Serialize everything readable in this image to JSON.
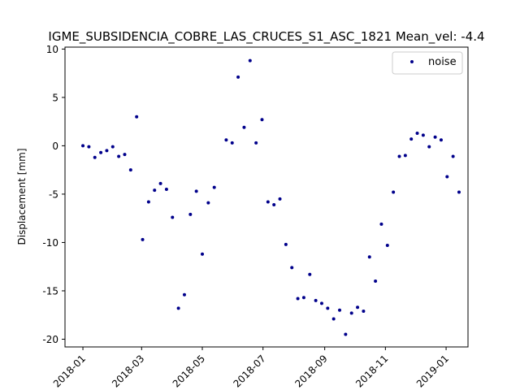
{
  "chart_data": {
    "type": "scatter",
    "title": "IGME_SUBSIDENCIA_COBRE_LAS_CRUCES_S1_ASC_1821     Mean_vel: -4.4",
    "xlabel": "",
    "ylabel": "Displacement [mm]",
    "xlim": [
      "2017-12-14",
      "2019-01-23"
    ],
    "ylim": [
      -20.8,
      10.2
    ],
    "x_ticks": [
      "2018-01",
      "2018-03",
      "2018-05",
      "2018-07",
      "2018-09",
      "2018-11",
      "2019-01"
    ],
    "y_ticks": [
      10,
      5,
      0,
      -5,
      -10,
      -15,
      -20
    ],
    "grid": false,
    "legend_position": "top-right",
    "series": [
      {
        "name": "noise",
        "color": "#00008b",
        "points": [
          {
            "x": "2018-01-01",
            "y": 0.0
          },
          {
            "x": "2018-01-07",
            "y": -0.1
          },
          {
            "x": "2018-01-13",
            "y": -1.2
          },
          {
            "x": "2018-01-19",
            "y": -0.7
          },
          {
            "x": "2018-01-25",
            "y": -0.5
          },
          {
            "x": "2018-01-31",
            "y": -0.1
          },
          {
            "x": "2018-02-06",
            "y": -1.1
          },
          {
            "x": "2018-02-12",
            "y": -0.9
          },
          {
            "x": "2018-02-18",
            "y": -2.5
          },
          {
            "x": "2018-02-24",
            "y": 3.0
          },
          {
            "x": "2018-03-02",
            "y": -9.7
          },
          {
            "x": "2018-03-08",
            "y": -5.8
          },
          {
            "x": "2018-03-14",
            "y": -4.6
          },
          {
            "x": "2018-03-20",
            "y": -3.9
          },
          {
            "x": "2018-03-26",
            "y": -4.5
          },
          {
            "x": "2018-04-01",
            "y": -7.4
          },
          {
            "x": "2018-04-07",
            "y": -16.8
          },
          {
            "x": "2018-04-13",
            "y": -15.4
          },
          {
            "x": "2018-04-19",
            "y": -7.1
          },
          {
            "x": "2018-04-25",
            "y": -4.7
          },
          {
            "x": "2018-05-01",
            "y": -11.2
          },
          {
            "x": "2018-05-07",
            "y": -5.9
          },
          {
            "x": "2018-05-13",
            "y": -4.3
          },
          {
            "x": "2018-05-25",
            "y": 0.6
          },
          {
            "x": "2018-05-31",
            "y": 0.3
          },
          {
            "x": "2018-06-06",
            "y": 7.1
          },
          {
            "x": "2018-06-12",
            "y": 1.9
          },
          {
            "x": "2018-06-18",
            "y": 8.8
          },
          {
            "x": "2018-06-24",
            "y": 0.3
          },
          {
            "x": "2018-06-30",
            "y": 2.7
          },
          {
            "x": "2018-07-06",
            "y": -5.8
          },
          {
            "x": "2018-07-12",
            "y": -6.1
          },
          {
            "x": "2018-07-18",
            "y": -5.5
          },
          {
            "x": "2018-07-24",
            "y": -10.2
          },
          {
            "x": "2018-07-30",
            "y": -12.6
          },
          {
            "x": "2018-08-05",
            "y": -15.8
          },
          {
            "x": "2018-08-11",
            "y": -15.7
          },
          {
            "x": "2018-08-17",
            "y": -13.3
          },
          {
            "x": "2018-08-23",
            "y": -16.0
          },
          {
            "x": "2018-08-29",
            "y": -16.3
          },
          {
            "x": "2018-09-04",
            "y": -16.8
          },
          {
            "x": "2018-09-10",
            "y": -17.9
          },
          {
            "x": "2018-09-16",
            "y": -17.0
          },
          {
            "x": "2018-09-22",
            "y": -19.5
          },
          {
            "x": "2018-09-28",
            "y": -17.3
          },
          {
            "x": "2018-10-04",
            "y": -16.7
          },
          {
            "x": "2018-10-10",
            "y": -17.1
          },
          {
            "x": "2018-10-16",
            "y": -11.5
          },
          {
            "x": "2018-10-22",
            "y": -14.0
          },
          {
            "x": "2018-10-28",
            "y": -8.1
          },
          {
            "x": "2018-11-03",
            "y": -10.3
          },
          {
            "x": "2018-11-09",
            "y": -4.8
          },
          {
            "x": "2018-11-15",
            "y": -1.1
          },
          {
            "x": "2018-11-21",
            "y": -1.0
          },
          {
            "x": "2018-11-27",
            "y": 0.7
          },
          {
            "x": "2018-12-03",
            "y": 1.3
          },
          {
            "x": "2018-12-09",
            "y": 1.1
          },
          {
            "x": "2018-12-15",
            "y": -0.1
          },
          {
            "x": "2018-12-21",
            "y": 0.9
          },
          {
            "x": "2018-12-27",
            "y": 0.6
          },
          {
            "x": "2019-01-02",
            "y": -3.2
          },
          {
            "x": "2019-01-08",
            "y": -1.1
          },
          {
            "x": "2019-01-14",
            "y": -4.8
          }
        ]
      }
    ]
  }
}
